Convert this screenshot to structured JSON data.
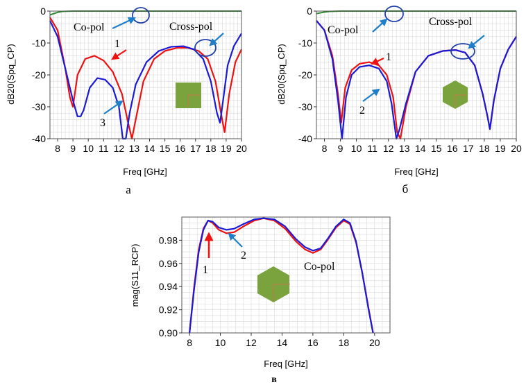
{
  "colors": {
    "red": "#ee1111",
    "blue": "#1a1ad6",
    "green": "#2e8b2e",
    "arrow": "#1e7fc8",
    "arrow_red": "#ee1111",
    "ellipse": "#2240aa",
    "grid": "#d8d8d8",
    "patch": "#7aa33d"
  },
  "chart_data": [
    {
      "panel": "а",
      "type": "line",
      "ylabel": "dB20(Spq_CP)",
      "xlabel": "Freq [GHz]",
      "xlim": [
        7.5,
        20
      ],
      "ylim": [
        -40,
        0
      ],
      "xticks": [
        8,
        9,
        10,
        11,
        12,
        13,
        14,
        15,
        16,
        17,
        18,
        19,
        20
      ],
      "yticks": [
        0,
        -10,
        -20,
        -30,
        -40
      ],
      "grid": true,
      "annotations": {
        "copol": "Co-pol",
        "crosspol": "Cross-pol",
        "n1": "1",
        "n3": "3"
      },
      "series": [
        {
          "color": "red",
          "x": [
            7.5,
            8.0,
            8.5,
            8.8,
            9.0,
            9.3,
            9.8,
            10.4,
            11.0,
            11.6,
            12.2,
            12.6,
            12.85,
            13.1,
            13.6,
            14.3,
            15.0,
            15.8,
            16.5,
            17.2,
            17.8,
            18.3,
            18.7,
            18.9,
            19.2,
            19.6,
            20.0
          ],
          "y": [
            -2,
            -6,
            -18,
            -27,
            -30,
            -20,
            -15,
            -14,
            -15.5,
            -19,
            -26,
            -35,
            -40,
            -34,
            -22,
            -15,
            -12.5,
            -11.5,
            -11.5,
            -12.5,
            -15,
            -22,
            -33,
            -38,
            -26,
            -16,
            -12
          ]
        },
        {
          "color": "blue",
          "x": [
            7.5,
            8.0,
            8.5,
            9.0,
            9.3,
            9.5,
            9.7,
            10.1,
            10.6,
            11.1,
            11.6,
            12.0,
            12.25,
            12.45,
            12.7,
            13.1,
            13.8,
            14.6,
            15.4,
            16.2,
            16.9,
            17.5,
            18.0,
            18.4,
            18.6,
            18.8,
            19.1,
            19.5,
            20.0
          ],
          "y": [
            -3,
            -8,
            -18,
            -28,
            -33,
            -33,
            -31,
            -24,
            -21,
            -21.5,
            -24,
            -30,
            -40,
            -40,
            -32,
            -23,
            -16,
            -12.5,
            -11.2,
            -11,
            -12,
            -15,
            -22,
            -32,
            -35,
            -28,
            -17,
            -11,
            -7
          ]
        },
        {
          "color": "green",
          "x": [
            7.5,
            8.0,
            8.3,
            9.0,
            12.0,
            15.0,
            18.0,
            20.0
          ],
          "y": [
            -1.2,
            -0.4,
            -0.1,
            0,
            0,
            0,
            0,
            0
          ]
        }
      ]
    },
    {
      "panel": "б",
      "type": "line",
      "ylabel": "dB20(Spq_CP)",
      "xlabel": "Freq [GHz]",
      "xlim": [
        7.5,
        20
      ],
      "ylim": [
        -40,
        0
      ],
      "xticks": [
        8,
        9,
        10,
        11,
        12,
        13,
        14,
        15,
        16,
        17,
        18,
        19,
        20
      ],
      "yticks": [
        0,
        -10,
        -20,
        -30,
        -40
      ],
      "grid": true,
      "annotations": {
        "copol": "Co-pol",
        "crosspol": "Cross-pol",
        "n1": "1",
        "n2": "2"
      },
      "series": [
        {
          "color": "red",
          "x": [
            7.5,
            8.0,
            8.5,
            8.85,
            9.05,
            9.3,
            9.7,
            10.2,
            10.8,
            11.4,
            11.9,
            12.3,
            12.55,
            12.75,
            13.1,
            13.7,
            14.5,
            15.4,
            16.2,
            16.8,
            17.4,
            17.9,
            18.2,
            18.35,
            18.6,
            19.0,
            19.5,
            20.0
          ],
          "y": [
            -3,
            -6,
            -14,
            -26,
            -35,
            -24,
            -18.5,
            -16.5,
            -16,
            -17,
            -20,
            -27,
            -38,
            -40,
            -30,
            -19,
            -14,
            -12.5,
            -12.2,
            -13,
            -17,
            -26,
            -33,
            -37,
            -28,
            -18,
            -12,
            -8
          ]
        },
        {
          "color": "blue",
          "x": [
            7.5,
            8.0,
            8.5,
            8.85,
            9.1,
            9.35,
            9.7,
            10.2,
            10.8,
            11.4,
            11.9,
            12.2,
            12.5,
            12.7,
            13.1,
            13.7,
            14.5,
            15.4,
            16.2,
            16.8,
            17.4,
            17.9,
            18.2,
            18.35,
            18.6,
            19.0,
            19.5,
            20.0
          ],
          "y": [
            -3,
            -6,
            -15,
            -28,
            -40,
            -27,
            -20,
            -17.5,
            -17,
            -18,
            -22,
            -29,
            -40,
            -37,
            -29,
            -19,
            -14,
            -12.5,
            -12.2,
            -13,
            -17,
            -26,
            -33,
            -37,
            -28,
            -18,
            -12,
            -8
          ]
        },
        {
          "color": "green",
          "x": [
            7.5,
            8.0,
            8.3,
            9.0,
            12.0,
            15.0,
            18.0,
            20.0
          ],
          "y": [
            -0.8,
            -0.3,
            -0.1,
            0,
            0,
            0,
            0,
            0
          ]
        }
      ]
    },
    {
      "panel": "в",
      "type": "line",
      "ylabel": "mag(S11_RCP)",
      "xlabel": "Freq [GHz]",
      "xlim": [
        7.5,
        21
      ],
      "ylim": [
        0.9,
        1.0
      ],
      "xticks": [
        8,
        10,
        12,
        14,
        16,
        18,
        20
      ],
      "yticks": [
        0.98,
        0.96,
        0.94,
        0.92,
        0.9
      ],
      "ytick_labels": [
        "0.98",
        "0.96",
        "0.94",
        "0.92",
        "0.90"
      ],
      "grid": true,
      "annotations": {
        "copol": "Co-pol",
        "n1": "1",
        "n2": "2"
      },
      "series": [
        {
          "color": "red",
          "x": [
            8.0,
            8.3,
            8.6,
            8.9,
            9.2,
            9.5,
            9.9,
            10.4,
            10.9,
            11.5,
            12.2,
            12.8,
            13.5,
            14.2,
            14.9,
            15.5,
            16.0,
            16.5,
            17.0,
            17.5,
            18.0,
            18.4,
            18.8,
            19.2,
            19.6,
            19.9
          ],
          "y": [
            0.9,
            0.94,
            0.972,
            0.99,
            0.997,
            0.995,
            0.989,
            0.986,
            0.987,
            0.992,
            0.997,
            0.999,
            0.997,
            0.99,
            0.979,
            0.972,
            0.969,
            0.972,
            0.981,
            0.991,
            0.997,
            0.994,
            0.978,
            0.952,
            0.922,
            0.9
          ]
        },
        {
          "color": "blue",
          "x": [
            8.0,
            8.3,
            8.6,
            8.9,
            9.2,
            9.5,
            9.9,
            10.4,
            10.9,
            11.5,
            12.2,
            12.8,
            13.5,
            14.2,
            14.9,
            15.5,
            16.0,
            16.5,
            17.0,
            17.5,
            18.0,
            18.4,
            18.8,
            19.2,
            19.6,
            19.9
          ],
          "y": [
            0.9,
            0.938,
            0.97,
            0.989,
            0.997,
            0.996,
            0.991,
            0.989,
            0.99,
            0.994,
            0.998,
            0.999,
            0.998,
            0.992,
            0.981,
            0.974,
            0.971,
            0.973,
            0.982,
            0.992,
            0.998,
            0.995,
            0.979,
            0.952,
            0.921,
            0.9
          ]
        }
      ]
    }
  ],
  "captions": [
    "а",
    "б",
    "в"
  ]
}
